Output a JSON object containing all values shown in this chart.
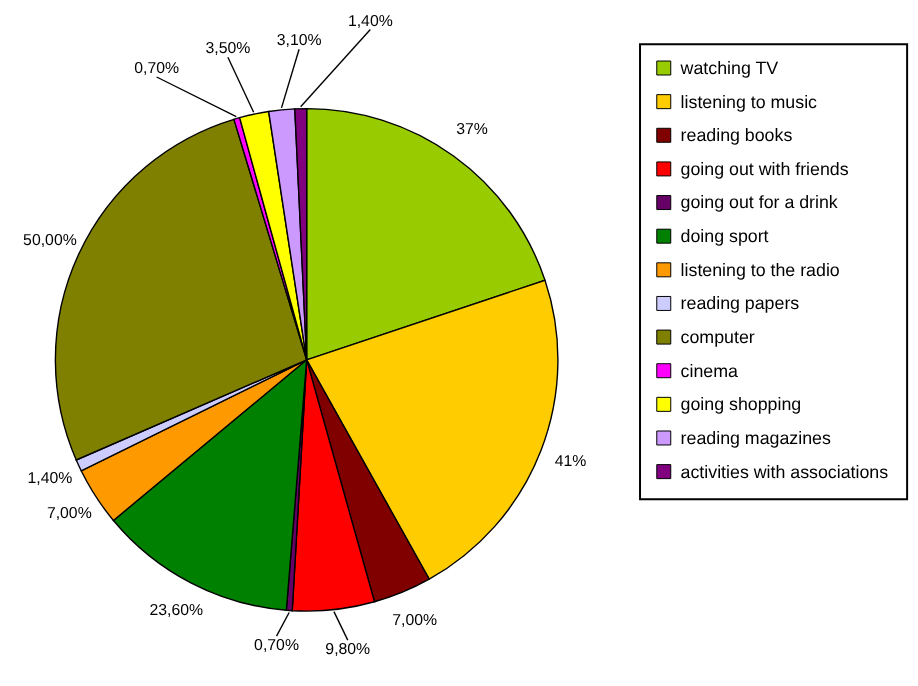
{
  "chart_data": {
    "type": "pie",
    "categories": [
      "watching TV",
      "listening to music",
      "reading books",
      "going out with friends",
      "going out for a drink",
      "doing sport",
      "listening to the radio",
      "reading papers",
      "computer",
      "cinema",
      "going shopping",
      "reading magazines",
      "activities with associations"
    ],
    "values": [
      37,
      41,
      7,
      9.8,
      0.7,
      23.6,
      7,
      1.4,
      50,
      0.7,
      3.5,
      3.1,
      1.4
    ],
    "value_labels": [
      "37%",
      "41%",
      "7,00%",
      "9,80%",
      "0,70%",
      "23,60%",
      "7,00%",
      "1,40%",
      "50,00%",
      "0,70%",
      "3,50%",
      "3,10%",
      "1,40%"
    ],
    "colors": [
      "#99cc00",
      "#ffcc00",
      "#800000",
      "#ff0000",
      "#660066",
      "#008000",
      "#ff9900",
      "#ccccff",
      "#808000",
      "#ff00ff",
      "#ffff00",
      "#cc99ff",
      "#800080"
    ],
    "legend": "right"
  }
}
